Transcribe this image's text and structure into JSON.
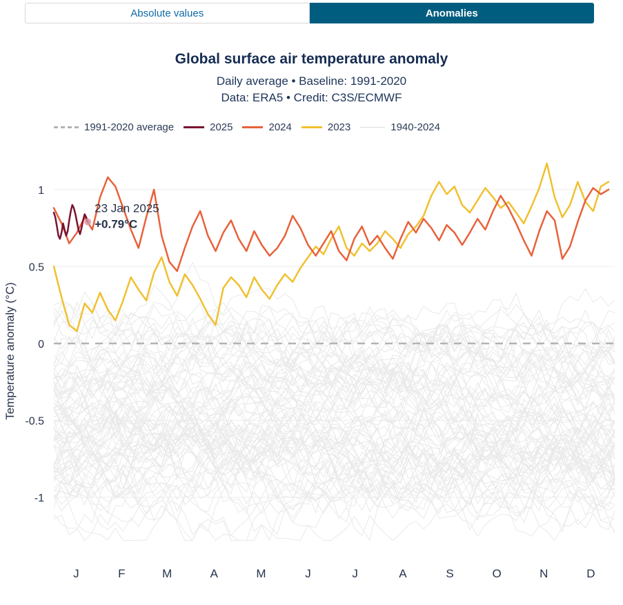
{
  "tabs": [
    {
      "label": "Absolute values",
      "active": false
    },
    {
      "label": "Anomalies",
      "active": true
    }
  ],
  "header": {
    "title": "Global surface air temperature anomaly",
    "subtitle1": "Daily average • Baseline: 1991-2020",
    "subtitle2": "Data: ERA5 • Credit: C3S/ECMWF"
  },
  "legend": [
    {
      "label": "1991-2020 average",
      "style": "dashed",
      "color": "#b3b3b3"
    },
    {
      "label": "2025",
      "style": "line",
      "color": "#7a1230"
    },
    {
      "label": "2024",
      "style": "line",
      "color": "#e8613a"
    },
    {
      "label": "2023",
      "style": "line",
      "color": "#f0c02f"
    },
    {
      "label": "1940-2024",
      "style": "thin",
      "color": "#dddddd"
    }
  ],
  "annotation": {
    "date": "23 Jan 2025",
    "value": "+0.79°C",
    "date_color": "#9c5560",
    "value_color": "#7a1230",
    "marker_color": "#dd93a4"
  },
  "chart_data": {
    "type": "line",
    "title": "Global surface air temperature anomaly",
    "xlabel": "",
    "ylabel": "Temperature anomaly (°C)",
    "ylim": [
      -1.35,
      1.25
    ],
    "yticks": [
      -1,
      -0.5,
      0,
      0.5,
      1
    ],
    "months": [
      "J",
      "F",
      "M",
      "A",
      "M",
      "J",
      "J",
      "A",
      "S",
      "O",
      "N",
      "D"
    ],
    "month_lengths": [
      31,
      28,
      31,
      30,
      31,
      30,
      31,
      31,
      30,
      31,
      30,
      31
    ],
    "baseline": {
      "label": "1991-2020 average",
      "value": 0,
      "style": "dashed",
      "color": "#b3b3b3"
    },
    "background": {
      "name": "1940-2024",
      "color": "#e9e9e9",
      "count": 85,
      "range": [
        -1.28,
        0.56
      ]
    },
    "series": [
      {
        "name": "2023",
        "color": "#f0c02f",
        "interval_days": 5,
        "values": [
          0.5,
          0.3,
          0.12,
          0.08,
          0.26,
          0.2,
          0.33,
          0.22,
          0.15,
          0.28,
          0.43,
          0.35,
          0.28,
          0.46,
          0.56,
          0.4,
          0.31,
          0.45,
          0.38,
          0.29,
          0.19,
          0.12,
          0.36,
          0.43,
          0.38,
          0.3,
          0.43,
          0.35,
          0.29,
          0.38,
          0.45,
          0.4,
          0.49,
          0.56,
          0.63,
          0.58,
          0.68,
          0.76,
          0.62,
          0.57,
          0.65,
          0.6,
          0.65,
          0.73,
          0.68,
          0.62,
          0.71,
          0.76,
          0.83,
          0.96,
          1.05,
          0.97,
          1.02,
          0.9,
          0.85,
          0.93,
          1.01,
          0.95,
          0.88,
          0.92,
          0.85,
          0.78,
          0.89,
          1.01,
          1.17,
          0.95,
          0.82,
          0.9,
          1.05,
          0.92,
          0.86,
          1.02,
          1.05
        ]
      },
      {
        "name": "2024",
        "color": "#e8613a",
        "interval_days": 5,
        "values": [
          0.88,
          0.78,
          0.65,
          0.72,
          0.82,
          0.74,
          0.95,
          1.08,
          1.02,
          0.88,
          0.74,
          0.62,
          0.82,
          1.0,
          0.7,
          0.53,
          0.47,
          0.62,
          0.76,
          0.86,
          0.7,
          0.6,
          0.72,
          0.8,
          0.68,
          0.6,
          0.73,
          0.64,
          0.57,
          0.62,
          0.7,
          0.83,
          0.75,
          0.64,
          0.57,
          0.65,
          0.73,
          0.6,
          0.54,
          0.68,
          0.76,
          0.64,
          0.7,
          0.62,
          0.55,
          0.68,
          0.79,
          0.72,
          0.81,
          0.75,
          0.67,
          0.77,
          0.72,
          0.64,
          0.72,
          0.81,
          0.74,
          0.86,
          0.96,
          0.88,
          0.78,
          0.67,
          0.57,
          0.73,
          0.86,
          0.8,
          0.55,
          0.63,
          0.79,
          0.93,
          1.01,
          0.97,
          1.0
        ]
      },
      {
        "name": "2025",
        "color": "#7a1230",
        "interval_days": 1,
        "values": [
          0.85,
          0.82,
          0.76,
          0.7,
          0.68,
          0.72,
          0.78,
          0.74,
          0.7,
          0.73,
          0.8,
          0.86,
          0.9,
          0.88,
          0.84,
          0.79,
          0.74,
          0.71,
          0.75,
          0.8,
          0.84,
          0.82,
          0.79
        ]
      }
    ]
  }
}
